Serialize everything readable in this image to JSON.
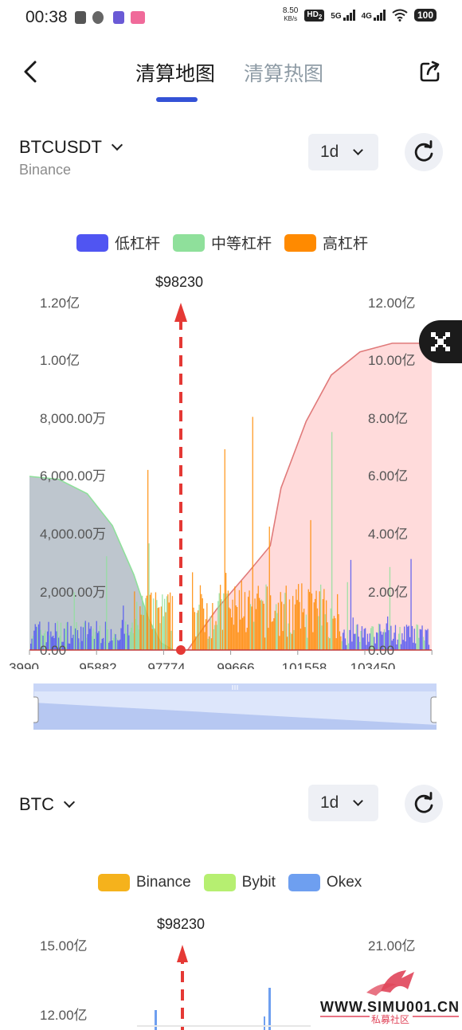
{
  "status_bar": {
    "time": "00:38",
    "net_speed_top": "8.50",
    "net_speed_bottom": "KB/s",
    "hd_label": "HD",
    "hd_sub": "2",
    "net_5g": "5G",
    "net_4g": "4G",
    "battery": "100"
  },
  "tabs": [
    {
      "label": "清算地图",
      "active": true
    },
    {
      "label": "清算热图",
      "active": false
    }
  ],
  "section1": {
    "symbol": "BTCUSDT",
    "exchange": "Binance",
    "interval": "1d",
    "legend": [
      {
        "label": "低杠杆",
        "color": "#5055f2"
      },
      {
        "label": "中等杠杆",
        "color": "#8fe09b"
      },
      {
        "label": "高杠杆",
        "color": "#ff8a00"
      }
    ],
    "price_marker": "$98230",
    "chart_data": {
      "type": "bar",
      "x_ticks": [
        "3990",
        "95882",
        "97774",
        "99666",
        "101558",
        "103450"
      ],
      "y_left_ticks": [
        "1.20亿",
        "1.00亿",
        "8,000.00万",
        "6,000.00万",
        "4,000.00万",
        "2,000.00万",
        "0.00"
      ],
      "y_right_ticks": [
        "12.00亿",
        "10.00亿",
        "8.00亿",
        "6.00亿",
        "4.00亿",
        "2.00亿",
        "0.00"
      ],
      "current_price": 98230,
      "x_range": [
        93990,
        105200
      ],
      "y_left_range": [
        0,
        120000000
      ],
      "y_right_range": [
        0,
        1200000000
      ],
      "cumulative_short": {
        "x": [
          93990,
          94800,
          95600,
          96300,
          96900,
          97300,
          97650,
          98000
        ],
        "y": [
          600000000,
          590000000,
          540000000,
          430000000,
          260000000,
          110000000,
          25000000,
          0
        ]
      },
      "cumulative_long": {
        "x": [
          98400,
          99200,
          100100,
          100700,
          101000,
          101700,
          102400,
          103200,
          104100,
          105000
        ],
        "y": [
          0,
          140000000,
          270000000,
          360000000,
          560000000,
          790000000,
          950000000,
          1030000000,
          1060000000,
          1060000000
        ]
      },
      "colors": {
        "short_fill": "#b7c0c9",
        "short_line": "#8fe09b",
        "long_fill": "#ffd9d9",
        "long_line": "#e07a7a",
        "marker": "#e53935"
      }
    }
  },
  "section2": {
    "symbol": "BTC",
    "interval": "1d",
    "legend": [
      {
        "label": "Binance",
        "color": "#f5b21c"
      },
      {
        "label": "Bybit",
        "color": "#b6ef71"
      },
      {
        "label": "Okex",
        "color": "#6e9ff0"
      }
    ],
    "price_marker": "$98230",
    "chart_data": {
      "type": "bar",
      "y_left_ticks": [
        "15.00亿",
        "12.00亿"
      ],
      "y_right_ticks": [
        "21.00亿"
      ],
      "current_price": 98230
    }
  },
  "watermark": {
    "site": "WWW.SIMU001.CN",
    "sub": "私募社区"
  }
}
